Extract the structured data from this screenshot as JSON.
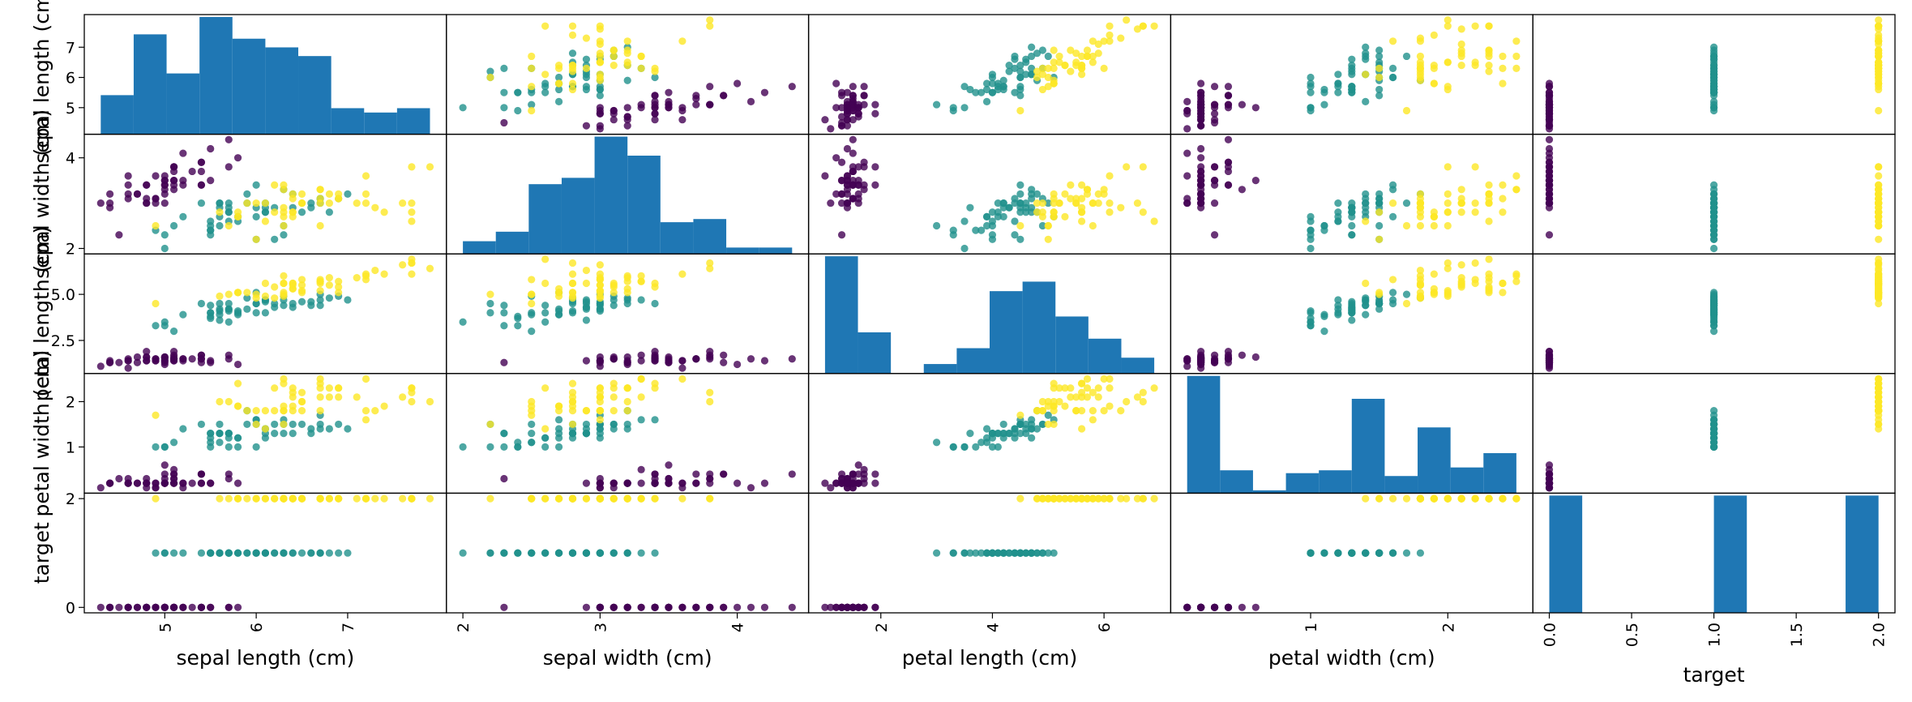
{
  "chart_data": {
    "type": "scatter",
    "kind": "scatter_matrix",
    "title": "",
    "variables": [
      "sepal length (cm)",
      "sepal width (cm)",
      "petal length (cm)",
      "petal width (cm)",
      "target"
    ],
    "diagonal": "histogram",
    "hist_bins": 10,
    "grid": false,
    "color_by": "target",
    "colormap": "viridis",
    "class_colors": [
      "#440154",
      "#21918c",
      "#fde725"
    ],
    "hist_color": "#1f77b4",
    "axis_ranges": [
      [
        4.3,
        7.9
      ],
      [
        2.0,
        4.4
      ],
      [
        1.0,
        6.9
      ],
      [
        0.1,
        2.5
      ],
      [
        0.0,
        2.0
      ]
    ],
    "yticks": {
      "sepal length (cm)": [
        "5",
        "6",
        "7"
      ],
      "sepal width (cm)": [
        "2",
        "4"
      ],
      "petal length (cm)": [
        "2.5",
        "5.0"
      ],
      "petal width (cm)": [
        "1",
        "2"
      ],
      "target": [
        "0",
        "2"
      ]
    },
    "xticks": {
      "sepal length (cm)": [
        "5",
        "6",
        "7"
      ],
      "sepal width (cm)": [
        "2",
        "3",
        "4"
      ],
      "petal length (cm)": [
        "2",
        "4",
        "6"
      ],
      "petal width (cm)": [
        "1",
        "2"
      ],
      "target": [
        "0.0",
        "0.5",
        "1.0",
        "1.5",
        "2.0"
      ]
    },
    "data": {
      "columns": [
        "sepal length (cm)",
        "sepal width (cm)",
        "petal length (cm)",
        "petal width (cm)",
        "target"
      ],
      "rows": [
        [
          5.1,
          3.5,
          1.4,
          0.2,
          0
        ],
        [
          4.9,
          3.0,
          1.4,
          0.2,
          0
        ],
        [
          4.7,
          3.2,
          1.3,
          0.2,
          0
        ],
        [
          4.6,
          3.1,
          1.5,
          0.2,
          0
        ],
        [
          5.0,
          3.6,
          1.4,
          0.2,
          0
        ],
        [
          5.4,
          3.9,
          1.7,
          0.4,
          0
        ],
        [
          4.6,
          3.4,
          1.4,
          0.3,
          0
        ],
        [
          5.0,
          3.4,
          1.5,
          0.2,
          0
        ],
        [
          4.4,
          2.9,
          1.4,
          0.2,
          0
        ],
        [
          4.9,
          3.1,
          1.5,
          0.1,
          0
        ],
        [
          5.4,
          3.7,
          1.5,
          0.2,
          0
        ],
        [
          4.8,
          3.4,
          1.6,
          0.2,
          0
        ],
        [
          4.8,
          3.0,
          1.4,
          0.1,
          0
        ],
        [
          4.3,
          3.0,
          1.1,
          0.1,
          0
        ],
        [
          5.8,
          4.0,
          1.2,
          0.2,
          0
        ],
        [
          5.7,
          4.4,
          1.5,
          0.4,
          0
        ],
        [
          5.4,
          3.9,
          1.3,
          0.4,
          0
        ],
        [
          5.1,
          3.5,
          1.4,
          0.3,
          0
        ],
        [
          5.7,
          3.8,
          1.7,
          0.3,
          0
        ],
        [
          5.1,
          3.8,
          1.5,
          0.3,
          0
        ],
        [
          5.4,
          3.4,
          1.7,
          0.2,
          0
        ],
        [
          5.1,
          3.7,
          1.5,
          0.4,
          0
        ],
        [
          4.6,
          3.6,
          1.0,
          0.2,
          0
        ],
        [
          5.1,
          3.3,
          1.7,
          0.5,
          0
        ],
        [
          4.8,
          3.4,
          1.9,
          0.2,
          0
        ],
        [
          5.0,
          3.0,
          1.6,
          0.2,
          0
        ],
        [
          5.0,
          3.4,
          1.6,
          0.4,
          0
        ],
        [
          5.2,
          3.5,
          1.5,
          0.2,
          0
        ],
        [
          5.2,
          3.4,
          1.4,
          0.2,
          0
        ],
        [
          4.7,
          3.2,
          1.6,
          0.2,
          0
        ],
        [
          4.8,
          3.1,
          1.6,
          0.2,
          0
        ],
        [
          5.4,
          3.4,
          1.5,
          0.4,
          0
        ],
        [
          5.2,
          4.1,
          1.5,
          0.1,
          0
        ],
        [
          5.5,
          4.2,
          1.4,
          0.2,
          0
        ],
        [
          4.9,
          3.1,
          1.5,
          0.2,
          0
        ],
        [
          5.0,
          3.2,
          1.2,
          0.2,
          0
        ],
        [
          5.5,
          3.5,
          1.3,
          0.2,
          0
        ],
        [
          4.9,
          3.6,
          1.4,
          0.1,
          0
        ],
        [
          4.4,
          3.0,
          1.3,
          0.2,
          0
        ],
        [
          5.1,
          3.4,
          1.5,
          0.2,
          0
        ],
        [
          5.0,
          3.5,
          1.3,
          0.3,
          0
        ],
        [
          4.5,
          2.3,
          1.3,
          0.3,
          0
        ],
        [
          4.4,
          3.2,
          1.3,
          0.2,
          0
        ],
        [
          5.0,
          3.5,
          1.6,
          0.6,
          0
        ],
        [
          5.1,
          3.8,
          1.9,
          0.4,
          0
        ],
        [
          4.8,
          3.0,
          1.4,
          0.3,
          0
        ],
        [
          5.1,
          3.8,
          1.6,
          0.2,
          0
        ],
        [
          4.6,
          3.2,
          1.4,
          0.2,
          0
        ],
        [
          5.3,
          3.7,
          1.5,
          0.2,
          0
        ],
        [
          5.0,
          3.3,
          1.4,
          0.2,
          0
        ],
        [
          7.0,
          3.2,
          4.7,
          1.4,
          1
        ],
        [
          6.4,
          3.2,
          4.5,
          1.5,
          1
        ],
        [
          6.9,
          3.1,
          4.9,
          1.5,
          1
        ],
        [
          5.5,
          2.3,
          4.0,
          1.3,
          1
        ],
        [
          6.5,
          2.8,
          4.6,
          1.5,
          1
        ],
        [
          5.7,
          2.8,
          4.5,
          1.3,
          1
        ],
        [
          6.3,
          3.3,
          4.7,
          1.6,
          1
        ],
        [
          4.9,
          2.4,
          3.3,
          1.0,
          1
        ],
        [
          6.6,
          2.9,
          4.6,
          1.3,
          1
        ],
        [
          5.2,
          2.7,
          3.9,
          1.4,
          1
        ],
        [
          5.0,
          2.0,
          3.5,
          1.0,
          1
        ],
        [
          5.9,
          3.0,
          4.2,
          1.5,
          1
        ],
        [
          6.0,
          2.2,
          4.0,
          1.0,
          1
        ],
        [
          6.1,
          2.9,
          4.7,
          1.4,
          1
        ],
        [
          5.6,
          2.9,
          3.6,
          1.3,
          1
        ],
        [
          6.7,
          3.1,
          4.4,
          1.4,
          1
        ],
        [
          5.6,
          3.0,
          4.5,
          1.5,
          1
        ],
        [
          5.8,
          2.7,
          4.1,
          1.0,
          1
        ],
        [
          6.2,
          2.2,
          4.5,
          1.5,
          1
        ],
        [
          5.6,
          2.5,
          3.9,
          1.1,
          1
        ],
        [
          5.9,
          3.2,
          4.8,
          1.8,
          1
        ],
        [
          6.1,
          2.8,
          4.0,
          1.3,
          1
        ],
        [
          6.3,
          2.5,
          4.9,
          1.5,
          1
        ],
        [
          6.1,
          2.8,
          4.7,
          1.2,
          1
        ],
        [
          6.4,
          2.9,
          4.3,
          1.3,
          1
        ],
        [
          6.6,
          3.0,
          4.4,
          1.4,
          1
        ],
        [
          6.8,
          2.8,
          4.8,
          1.4,
          1
        ],
        [
          6.7,
          3.0,
          5.0,
          1.7,
          1
        ],
        [
          6.0,
          2.9,
          4.5,
          1.5,
          1
        ],
        [
          5.7,
          2.6,
          3.5,
          1.0,
          1
        ],
        [
          5.5,
          2.4,
          3.8,
          1.1,
          1
        ],
        [
          5.5,
          2.4,
          3.7,
          1.0,
          1
        ],
        [
          5.8,
          2.7,
          3.9,
          1.2,
          1
        ],
        [
          6.0,
          2.7,
          5.1,
          1.6,
          1
        ],
        [
          5.4,
          3.0,
          4.5,
          1.5,
          1
        ],
        [
          6.0,
          3.4,
          4.5,
          1.6,
          1
        ],
        [
          6.7,
          3.1,
          4.7,
          1.5,
          1
        ],
        [
          6.3,
          2.3,
          4.4,
          1.3,
          1
        ],
        [
          5.6,
          3.0,
          4.1,
          1.3,
          1
        ],
        [
          5.5,
          2.5,
          4.0,
          1.3,
          1
        ],
        [
          5.5,
          2.6,
          4.4,
          1.2,
          1
        ],
        [
          6.1,
          3.0,
          4.6,
          1.4,
          1
        ],
        [
          5.8,
          2.6,
          4.0,
          1.2,
          1
        ],
        [
          5.0,
          2.3,
          3.3,
          1.0,
          1
        ],
        [
          5.6,
          2.7,
          4.2,
          1.3,
          1
        ],
        [
          5.7,
          3.0,
          4.2,
          1.2,
          1
        ],
        [
          5.7,
          2.9,
          4.2,
          1.3,
          1
        ],
        [
          6.2,
          2.9,
          4.3,
          1.3,
          1
        ],
        [
          5.1,
          2.5,
          3.0,
          1.1,
          1
        ],
        [
          5.7,
          2.8,
          4.1,
          1.3,
          1
        ],
        [
          6.3,
          3.3,
          6.0,
          2.5,
          2
        ],
        [
          5.8,
          2.7,
          5.1,
          1.9,
          2
        ],
        [
          7.1,
          3.0,
          5.9,
          2.1,
          2
        ],
        [
          6.3,
          2.9,
          5.6,
          1.8,
          2
        ],
        [
          6.5,
          3.0,
          5.8,
          2.2,
          2
        ],
        [
          7.6,
          3.0,
          6.6,
          2.1,
          2
        ],
        [
          4.9,
          2.5,
          4.5,
          1.7,
          2
        ],
        [
          7.3,
          2.9,
          6.3,
          1.8,
          2
        ],
        [
          6.7,
          2.5,
          5.8,
          1.8,
          2
        ],
        [
          7.2,
          3.6,
          6.1,
          2.5,
          2
        ],
        [
          6.5,
          3.2,
          5.1,
          2.0,
          2
        ],
        [
          6.4,
          2.7,
          5.3,
          1.9,
          2
        ],
        [
          6.8,
          3.0,
          5.5,
          2.1,
          2
        ],
        [
          5.7,
          2.5,
          5.0,
          2.0,
          2
        ],
        [
          5.8,
          2.8,
          5.1,
          2.4,
          2
        ],
        [
          6.4,
          3.2,
          5.3,
          2.3,
          2
        ],
        [
          6.5,
          3.0,
          5.5,
          1.8,
          2
        ],
        [
          7.7,
          3.8,
          6.7,
          2.2,
          2
        ],
        [
          7.7,
          2.6,
          6.9,
          2.3,
          2
        ],
        [
          6.0,
          2.2,
          5.0,
          1.5,
          2
        ],
        [
          6.9,
          3.2,
          5.7,
          2.3,
          2
        ],
        [
          5.6,
          2.8,
          4.9,
          2.0,
          2
        ],
        [
          7.7,
          2.8,
          6.7,
          2.0,
          2
        ],
        [
          6.3,
          2.7,
          4.9,
          1.8,
          2
        ],
        [
          6.7,
          3.3,
          5.7,
          2.1,
          2
        ],
        [
          7.2,
          3.2,
          6.0,
          1.8,
          2
        ],
        [
          6.2,
          2.8,
          4.8,
          1.8,
          2
        ],
        [
          6.1,
          3.0,
          4.9,
          1.8,
          2
        ],
        [
          6.4,
          2.8,
          5.6,
          2.1,
          2
        ],
        [
          7.2,
          3.0,
          5.8,
          1.6,
          2
        ],
        [
          7.4,
          2.8,
          6.1,
          1.9,
          2
        ],
        [
          7.9,
          3.8,
          6.4,
          2.0,
          2
        ],
        [
          6.4,
          2.8,
          5.6,
          2.2,
          2
        ],
        [
          6.3,
          2.8,
          5.1,
          1.5,
          2
        ],
        [
          6.1,
          2.6,
          5.6,
          1.4,
          2
        ],
        [
          7.7,
          3.0,
          6.1,
          2.3,
          2
        ],
        [
          6.3,
          3.4,
          5.6,
          2.4,
          2
        ],
        [
          6.4,
          3.1,
          5.5,
          1.8,
          2
        ],
        [
          6.0,
          3.0,
          4.8,
          1.8,
          2
        ],
        [
          6.9,
          3.1,
          5.4,
          2.1,
          2
        ],
        [
          6.7,
          3.1,
          5.6,
          2.4,
          2
        ],
        [
          6.9,
          3.1,
          5.1,
          2.3,
          2
        ],
        [
          5.8,
          2.7,
          5.1,
          1.9,
          2
        ],
        [
          6.8,
          3.2,
          5.9,
          2.3,
          2
        ],
        [
          6.7,
          3.3,
          5.7,
          2.5,
          2
        ],
        [
          6.7,
          3.0,
          5.2,
          2.3,
          2
        ],
        [
          6.3,
          2.5,
          5.0,
          1.9,
          2
        ],
        [
          6.5,
          3.0,
          5.2,
          2.0,
          2
        ],
        [
          6.2,
          3.4,
          5.4,
          2.3,
          2
        ],
        [
          5.9,
          3.0,
          5.1,
          1.8,
          2
        ]
      ]
    }
  }
}
